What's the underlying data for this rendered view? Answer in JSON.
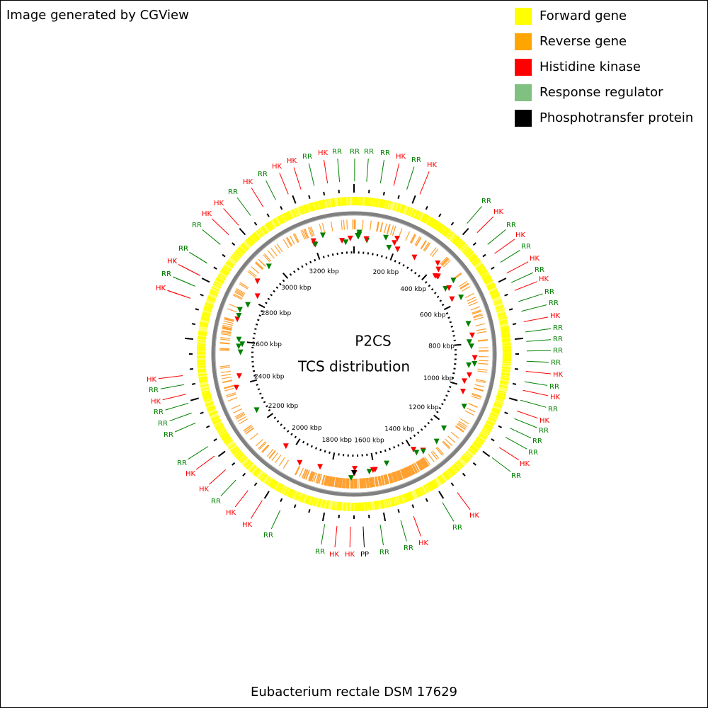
{
  "header": {
    "credit": "Image generated by CGView"
  },
  "legend": [
    {
      "label": "Forward gene",
      "color": "#ffff00"
    },
    {
      "label": "Reverse gene",
      "color": "#ffa500"
    },
    {
      "label": "Histidine kinase",
      "color": "#ff0000"
    },
    {
      "label": "Response regulator",
      "color": "#80c080"
    },
    {
      "label": "Phosphotransfer protein",
      "color": "#000000"
    }
  ],
  "center": {
    "title": "P2CS",
    "subtitle": "TCS distribution"
  },
  "ruler_labels": [
    "200 kbp",
    "400 kbp",
    "600 kbp",
    "800 kbp",
    "1000 kbp",
    "1200 kbp",
    "1400 kbp",
    "1600 kbp",
    "1800 kbp",
    "2000 kbp",
    "2200 kbp",
    "2400 kbp",
    "2600 kbp",
    "2800 kbp",
    "3000 kbp",
    "3200 kbp"
  ],
  "footer": {
    "organism": "Eubacterium rectale DSM 17629"
  },
  "features": [
    {
      "label": "RR",
      "color": "#008000"
    },
    {
      "label": "RR",
      "color": "#008000"
    },
    {
      "label": "RR",
      "color": "#008000"
    },
    {
      "label": "RR",
      "color": "#008000"
    },
    {
      "label": "HK",
      "color": "#ff0000"
    },
    {
      "label": "RR",
      "color": "#008000"
    },
    {
      "label": "HK",
      "color": "#ff0000"
    },
    {
      "label": "HK",
      "color": "#ff0000"
    },
    {
      "label": "RR",
      "color": "#008000"
    },
    {
      "label": "HK",
      "color": "#ff0000"
    },
    {
      "label": "HK",
      "color": "#ff0000"
    },
    {
      "label": "RR",
      "color": "#008000"
    },
    {
      "label": "HK",
      "color": "#ff0000"
    },
    {
      "label": "RR",
      "color": "#008000"
    },
    {
      "label": "HK",
      "color": "#ff0000"
    },
    {
      "label": "HK",
      "color": "#ff0000"
    },
    {
      "label": "RR",
      "color": "#008000"
    },
    {
      "label": "RR",
      "color": "#008000"
    },
    {
      "label": "HK",
      "color": "#ff0000"
    },
    {
      "label": "RR",
      "color": "#008000"
    },
    {
      "label": "HK",
      "color": "#ff0000"
    },
    {
      "label": "RR",
      "color": "#008000"
    },
    {
      "label": "HK",
      "color": "#ff0000"
    },
    {
      "label": "RR",
      "color": "#008000"
    },
    {
      "label": "HK",
      "color": "#ff0000"
    },
    {
      "label": "RR",
      "color": "#008000"
    },
    {
      "label": "HK",
      "color": "#ff0000"
    },
    {
      "label": "RR",
      "color": "#008000"
    },
    {
      "label": "HK",
      "color": "#ff0000"
    },
    {
      "label": "RR",
      "color": "#008000"
    },
    {
      "label": "RR",
      "color": "#008000"
    },
    {
      "label": "HK",
      "color": "#ff0000"
    },
    {
      "label": "RR",
      "color": "#008000"
    },
    {
      "label": "RR",
      "color": "#008000"
    },
    {
      "label": "RR",
      "color": "#008000"
    },
    {
      "label": "HK",
      "color": "#ff0000"
    },
    {
      "label": "RR",
      "color": "#008000"
    },
    {
      "label": "HK",
      "color": "#ff0000"
    },
    {
      "label": "RR",
      "color": "#008000"
    },
    {
      "label": "RR",
      "color": "#008000"
    },
    {
      "label": "PP",
      "color": "#000000"
    },
    {
      "label": "HK",
      "color": "#ff0000"
    },
    {
      "label": "HK",
      "color": "#ff0000"
    },
    {
      "label": "RR",
      "color": "#008000"
    },
    {
      "label": "RR",
      "color": "#008000"
    },
    {
      "label": "HK",
      "color": "#ff0000"
    },
    {
      "label": "HK",
      "color": "#ff0000"
    },
    {
      "label": "RR",
      "color": "#008000"
    },
    {
      "label": "HK",
      "color": "#ff0000"
    },
    {
      "label": "HK",
      "color": "#ff0000"
    },
    {
      "label": "RR",
      "color": "#008000"
    },
    {
      "label": "RR",
      "color": "#008000"
    },
    {
      "label": "RR",
      "color": "#008000"
    },
    {
      "label": "RR",
      "color": "#008000"
    },
    {
      "label": "HK",
      "color": "#ff0000"
    },
    {
      "label": "RR",
      "color": "#008000"
    },
    {
      "label": "HK",
      "color": "#ff0000"
    },
    {
      "label": "HK",
      "color": "#ff0000"
    },
    {
      "label": "RR",
      "color": "#008000"
    },
    {
      "label": "HK",
      "color": "#ff0000"
    },
    {
      "label": "RR",
      "color": "#008000"
    },
    {
      "label": "RR",
      "color": "#008000"
    },
    {
      "label": "HK",
      "color": "#ff0000"
    },
    {
      "label": "RR",
      "color": "#008000"
    },
    {
      "label": "HK",
      "color": "#ff0000"
    },
    {
      "label": "RR",
      "color": "#008000"
    },
    {
      "label": "HK",
      "color": "#ff0000"
    },
    {
      "label": "RR",
      "color": "#008000"
    },
    {
      "label": "RR",
      "color": "#008000"
    },
    {
      "label": "RR",
      "color": "#008000"
    },
    {
      "label": "HK",
      "color": "#ff0000"
    },
    {
      "label": "RR",
      "color": "#008000"
    }
  ]
}
